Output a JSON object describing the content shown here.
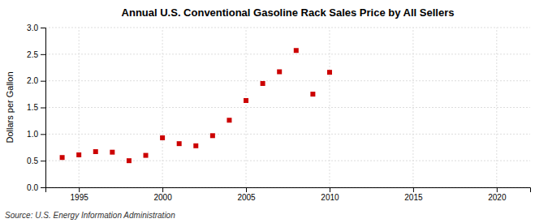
{
  "chart_data": {
    "type": "scatter",
    "title": "Annual U.S. Conventional Gasoline Rack Sales Price by All Sellers",
    "y_label": "Dollars per Gallon",
    "annotations": [
      "Source: U.S. Energy Information Administration"
    ],
    "x": [
      1994,
      1995,
      1996,
      1997,
      1998,
      1999,
      2000,
      2001,
      2002,
      2003,
      2004,
      2005,
      2006,
      2007,
      2008,
      2009,
      2010
    ],
    "values": [
      0.56,
      0.61,
      0.67,
      0.66,
      0.5,
      0.6,
      0.93,
      0.82,
      0.78,
      0.97,
      1.26,
      1.63,
      1.95,
      2.17,
      2.57,
      1.75,
      2.16
    ],
    "xlim": [
      1993,
      2022
    ],
    "ylim": [
      0.0,
      3.0
    ],
    "xticks": [
      1995,
      2000,
      2005,
      2010,
      2015,
      2020
    ],
    "yticks": [
      {
        "value": 0.0,
        "label": "0.0"
      },
      0.5,
      {
        "value": 1.0,
        "label": "1.0"
      },
      1.5,
      {
        "value": 2.0,
        "label": "2.0"
      },
      2.5,
      {
        "value": 3.0,
        "label": "3.0"
      }
    ],
    "color": "#cc0000",
    "marker": "square",
    "grid": true
  }
}
